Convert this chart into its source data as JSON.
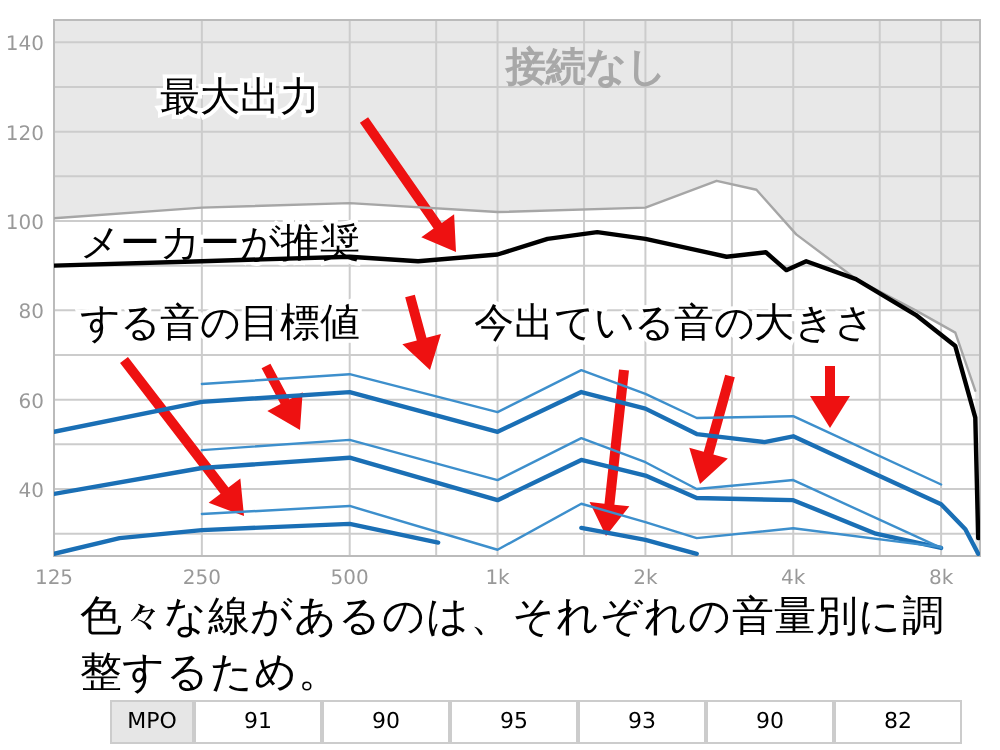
{
  "chart_data": {
    "type": "line",
    "xlim": [
      125,
      9600
    ],
    "ylim": [
      25,
      145
    ],
    "log": "x",
    "xticks": [
      125,
      250,
      500,
      {
        "value": 750,
        "label": null
      },
      {
        "value": 1000,
        "label": "1k"
      },
      {
        "value": 1500,
        "label": null
      },
      {
        "value": 2000,
        "label": "2k"
      },
      {
        "value": 3000,
        "label": null
      },
      {
        "value": 4000,
        "label": "4k"
      },
      {
        "value": 6000,
        "label": null
      },
      {
        "value": 8000,
        "label": "8k"
      }
    ],
    "yticks": [
      {
        "value": 30,
        "label": null
      },
      40,
      {
        "value": 50,
        "label": null
      },
      60,
      {
        "value": 70,
        "label": null
      },
      80,
      {
        "value": 90,
        "label": null
      },
      100,
      {
        "value": 110,
        "label": null
      },
      120,
      {
        "value": 130,
        "label": null
      },
      140
    ],
    "grid": true,
    "series": [
      {
        "type": "area",
        "color": "#a6a6a6",
        "x": [
          125,
          250,
          500,
          1000,
          2000,
          2793,
          3366,
          4056,
          5366,
          7100,
          8550,
          9390
        ],
        "values": [
          100.6,
          103,
          104,
          102,
          103,
          109,
          107,
          97,
          87,
          80,
          75,
          62
        ]
      },
      {
        "color": "#000000",
        "x": [
          125,
          250,
          500,
          689,
          1000,
          1264,
          1596,
          2000,
          2544,
          2926,
          3517,
          3871,
          4250,
          5366,
          7100,
          8550,
          9390,
          9520
        ],
        "values": [
          90,
          91,
          92,
          91,
          92.5,
          96,
          97.5,
          96,
          93.5,
          92,
          93,
          89,
          91,
          87,
          79,
          72,
          56,
          29
        ]
      },
      {
        "color": "#1a6fb5",
        "x": [
          125,
          250,
          500,
          1000,
          1481,
          2000,
          2544,
          2982,
          3494,
          4000,
          5890,
          8000,
          8963,
          9520
        ],
        "values": [
          52.8,
          59.5,
          61.7,
          52.8,
          61.7,
          58,
          52.3,
          51.4,
          50.5,
          51.8,
          43.3,
          36.6,
          31,
          25.5
        ]
      },
      {
        "color": "#3d8fcc",
        "x": [
          250,
          500,
          1000,
          1481,
          2000,
          2544,
          4000,
          8000
        ],
        "values": [
          63.5,
          65.7,
          57.2,
          66.6,
          61.3,
          55.9,
          56.3,
          41
        ]
      },
      {
        "color": "#1a6fb5",
        "x": [
          125,
          250,
          500,
          1000,
          1481,
          2000,
          2544,
          4000,
          5890,
          8000
        ],
        "values": [
          38.9,
          44.7,
          47,
          37.5,
          46.5,
          43,
          38,
          37.5,
          30,
          26.8
        ]
      },
      {
        "color": "#3d8fcc",
        "x": [
          250,
          500,
          1000,
          1481,
          2000,
          2544,
          4000,
          8000
        ],
        "values": [
          48.7,
          51,
          42,
          51.4,
          46,
          40,
          42,
          26.8
        ]
      },
      {
        "color": "#1a6fb5",
        "x": [
          125,
          170,
          250,
          500,
          757
        ],
        "values": [
          25.5,
          29,
          30.8,
          32.2,
          28
        ]
      },
      {
        "color": "#3d8fcc",
        "x": [
          250,
          500,
          1000,
          1481,
          2000,
          2544,
          4000,
          8000
        ],
        "values": [
          34.4,
          36.2,
          26.4,
          36.7,
          32.6,
          29,
          31.2,
          27
        ]
      },
      {
        "color": "#1a6fb5",
        "x": [
          1481,
          2000,
          2544
        ],
        "values": [
          31.3,
          28.6,
          25.5
        ]
      }
    ],
    "annotations": [
      "接続なし",
      "最大出力",
      "メーカーが推奨",
      "する音の目標値",
      "今出ている音の大きさ",
      "色々な線があるのは、それぞれの音量別に調整するため。",
      "MPO",
      "91",
      "90",
      "95",
      "93",
      "90",
      "82"
    ]
  }
}
